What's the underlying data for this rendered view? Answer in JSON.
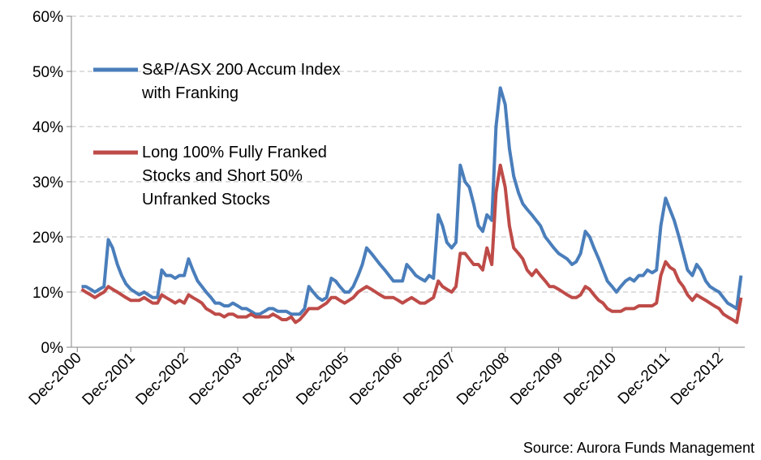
{
  "chart_data": {
    "type": "line",
    "annotations": [
      "Source: Aurora Funds Management"
    ],
    "xlim": [
      2000.81,
      2013.4
    ],
    "xticks": [
      {
        "value": 2000.92,
        "label": "Dec-2000"
      },
      {
        "value": 2001.92,
        "label": "Dec-2001"
      },
      {
        "value": 2002.92,
        "label": "Dec-2002"
      },
      {
        "value": 2003.92,
        "label": "Dec-2003"
      },
      {
        "value": 2004.92,
        "label": "Dec-2004"
      },
      {
        "value": 2005.92,
        "label": "Dec-2005"
      },
      {
        "value": 2006.92,
        "label": "Dec-2006"
      },
      {
        "value": 2007.92,
        "label": "Dec-2007"
      },
      {
        "value": 2008.92,
        "label": "Dec-2008"
      },
      {
        "value": 2009.92,
        "label": "Dec-2009"
      },
      {
        "value": 2010.92,
        "label": "Dec-2010"
      },
      {
        "value": 2011.92,
        "label": "Dec-2011"
      },
      {
        "value": 2012.92,
        "label": "Dec-2012"
      }
    ],
    "ylim": [
      0,
      60
    ],
    "yticks": [
      {
        "value": 0,
        "label": "0%"
      },
      {
        "value": 10,
        "label": "10%"
      },
      {
        "value": 20,
        "label": "20%"
      },
      {
        "value": 30,
        "label": "30%"
      },
      {
        "value": 40,
        "label": "40%"
      },
      {
        "value": 50,
        "label": "50%"
      },
      {
        "value": 60,
        "label": "60%"
      }
    ],
    "grid": true,
    "x": [
      2001.0,
      2001.08,
      2001.17,
      2001.25,
      2001.33,
      2001.42,
      2001.5,
      2001.58,
      2001.67,
      2001.75,
      2001.83,
      2001.92,
      2002.0,
      2002.08,
      2002.17,
      2002.25,
      2002.33,
      2002.42,
      2002.5,
      2002.58,
      2002.67,
      2002.75,
      2002.83,
      2002.92,
      2003.0,
      2003.08,
      2003.17,
      2003.25,
      2003.33,
      2003.42,
      2003.5,
      2003.58,
      2003.67,
      2003.75,
      2003.83,
      2003.92,
      2004.0,
      2004.08,
      2004.17,
      2004.25,
      2004.33,
      2004.42,
      2004.5,
      2004.58,
      2004.67,
      2004.75,
      2004.83,
      2004.92,
      2005.0,
      2005.08,
      2005.17,
      2005.25,
      2005.33,
      2005.42,
      2005.5,
      2005.58,
      2005.67,
      2005.75,
      2005.83,
      2005.92,
      2006.0,
      2006.08,
      2006.17,
      2006.25,
      2006.33,
      2006.42,
      2006.5,
      2006.58,
      2006.67,
      2006.75,
      2006.83,
      2006.92,
      2007.0,
      2007.08,
      2007.17,
      2007.25,
      2007.33,
      2007.42,
      2007.5,
      2007.58,
      2007.67,
      2007.75,
      2007.83,
      2007.92,
      2008.0,
      2008.08,
      2008.17,
      2008.25,
      2008.33,
      2008.42,
      2008.5,
      2008.58,
      2008.67,
      2008.75,
      2008.83,
      2008.92,
      2009.0,
      2009.08,
      2009.17,
      2009.25,
      2009.33,
      2009.42,
      2009.5,
      2009.58,
      2009.67,
      2009.75,
      2009.83,
      2009.92,
      2010.0,
      2010.08,
      2010.17,
      2010.25,
      2010.33,
      2010.42,
      2010.5,
      2010.58,
      2010.67,
      2010.75,
      2010.83,
      2010.92,
      2011.0,
      2011.08,
      2011.17,
      2011.25,
      2011.33,
      2011.42,
      2011.5,
      2011.58,
      2011.67,
      2011.75,
      2011.83,
      2011.92,
      2012.0,
      2012.08,
      2012.17,
      2012.25,
      2012.33,
      2012.42,
      2012.5,
      2012.58,
      2012.67,
      2012.75,
      2012.83,
      2012.92,
      2013.0,
      2013.08,
      2013.17,
      2013.25,
      2013.33
    ],
    "series": [
      {
        "name": "S&P/ASX 200 Accum Index with Franking",
        "color": "#4a7ebb",
        "values": [
          11,
          11,
          10.5,
          10,
          10.5,
          11,
          19.5,
          18,
          15,
          13,
          11.5,
          10.5,
          10,
          9.5,
          10,
          9.5,
          9,
          9,
          14,
          13,
          13,
          12.5,
          13,
          13,
          16,
          14,
          12,
          11,
          10,
          9,
          8,
          8,
          7.5,
          7.5,
          8,
          7.5,
          7,
          7,
          6.5,
          6,
          6,
          6.5,
          7,
          7,
          6.5,
          6.5,
          6.5,
          6,
          6,
          6,
          7,
          11,
          10,
          9,
          8.5,
          9,
          12.5,
          12,
          11,
          10,
          10,
          11,
          13,
          15,
          18,
          17,
          16,
          15,
          14,
          13,
          12,
          12,
          12,
          15,
          14,
          13,
          12.5,
          12,
          13,
          12.5,
          24,
          22,
          19,
          18,
          19,
          33,
          30,
          29,
          26,
          22,
          21,
          24,
          23,
          40,
          47,
          44,
          36,
          31,
          28,
          26,
          25,
          24,
          23,
          22,
          20,
          19,
          18,
          17,
          16.5,
          16,
          15,
          15.5,
          17,
          21,
          20,
          18,
          16,
          14,
          12,
          11,
          10,
          11,
          12,
          12.5,
          12,
          13,
          13,
          14,
          13.5,
          14,
          22,
          27,
          25,
          23,
          20,
          17,
          14,
          13,
          15,
          14,
          12,
          11,
          10.5,
          10,
          9,
          8,
          7.5,
          7,
          13
        ]
      },
      {
        "name": "Long 100% Fully Franked Stocks and Short 50% Unfranked Stocks",
        "color": "#be4b48",
        "values": [
          10.5,
          10,
          9.5,
          9,
          9.5,
          10,
          11,
          10.5,
          10,
          9.5,
          9,
          8.5,
          8.5,
          8.5,
          9,
          8.5,
          8,
          8,
          9.5,
          9,
          8.5,
          8,
          8.5,
          8,
          9.5,
          9,
          8.5,
          8,
          7,
          6.5,
          6,
          6,
          5.5,
          6,
          6,
          5.5,
          5.5,
          5.5,
          6,
          5.5,
          5.5,
          5.5,
          5.5,
          6,
          5.5,
          5,
          5,
          5.5,
          4.5,
          5,
          6,
          7,
          7,
          7,
          7.5,
          8,
          9,
          9,
          8.5,
          8,
          8.5,
          9,
          10,
          10.5,
          11,
          10.5,
          10,
          9.5,
          9,
          9,
          9,
          8.5,
          8,
          8.5,
          9,
          8.5,
          8,
          8,
          8.5,
          9,
          12,
          11,
          10.5,
          10,
          11,
          17,
          17,
          16,
          15,
          15,
          14,
          18,
          15,
          28,
          33,
          29,
          22,
          18,
          17,
          16,
          14,
          13,
          14,
          13,
          12,
          11,
          11,
          10.5,
          10,
          9.5,
          9,
          9,
          9.5,
          11,
          10.5,
          9.5,
          8.5,
          8,
          7,
          6.5,
          6.5,
          6.5,
          7,
          7,
          7,
          7.5,
          7.5,
          7.5,
          7.5,
          8,
          13,
          15.5,
          14.5,
          14,
          12,
          11,
          9.5,
          8.5,
          9.5,
          9,
          8.5,
          8,
          7.5,
          7,
          6,
          5.5,
          5,
          4.5,
          9
        ]
      }
    ]
  }
}
